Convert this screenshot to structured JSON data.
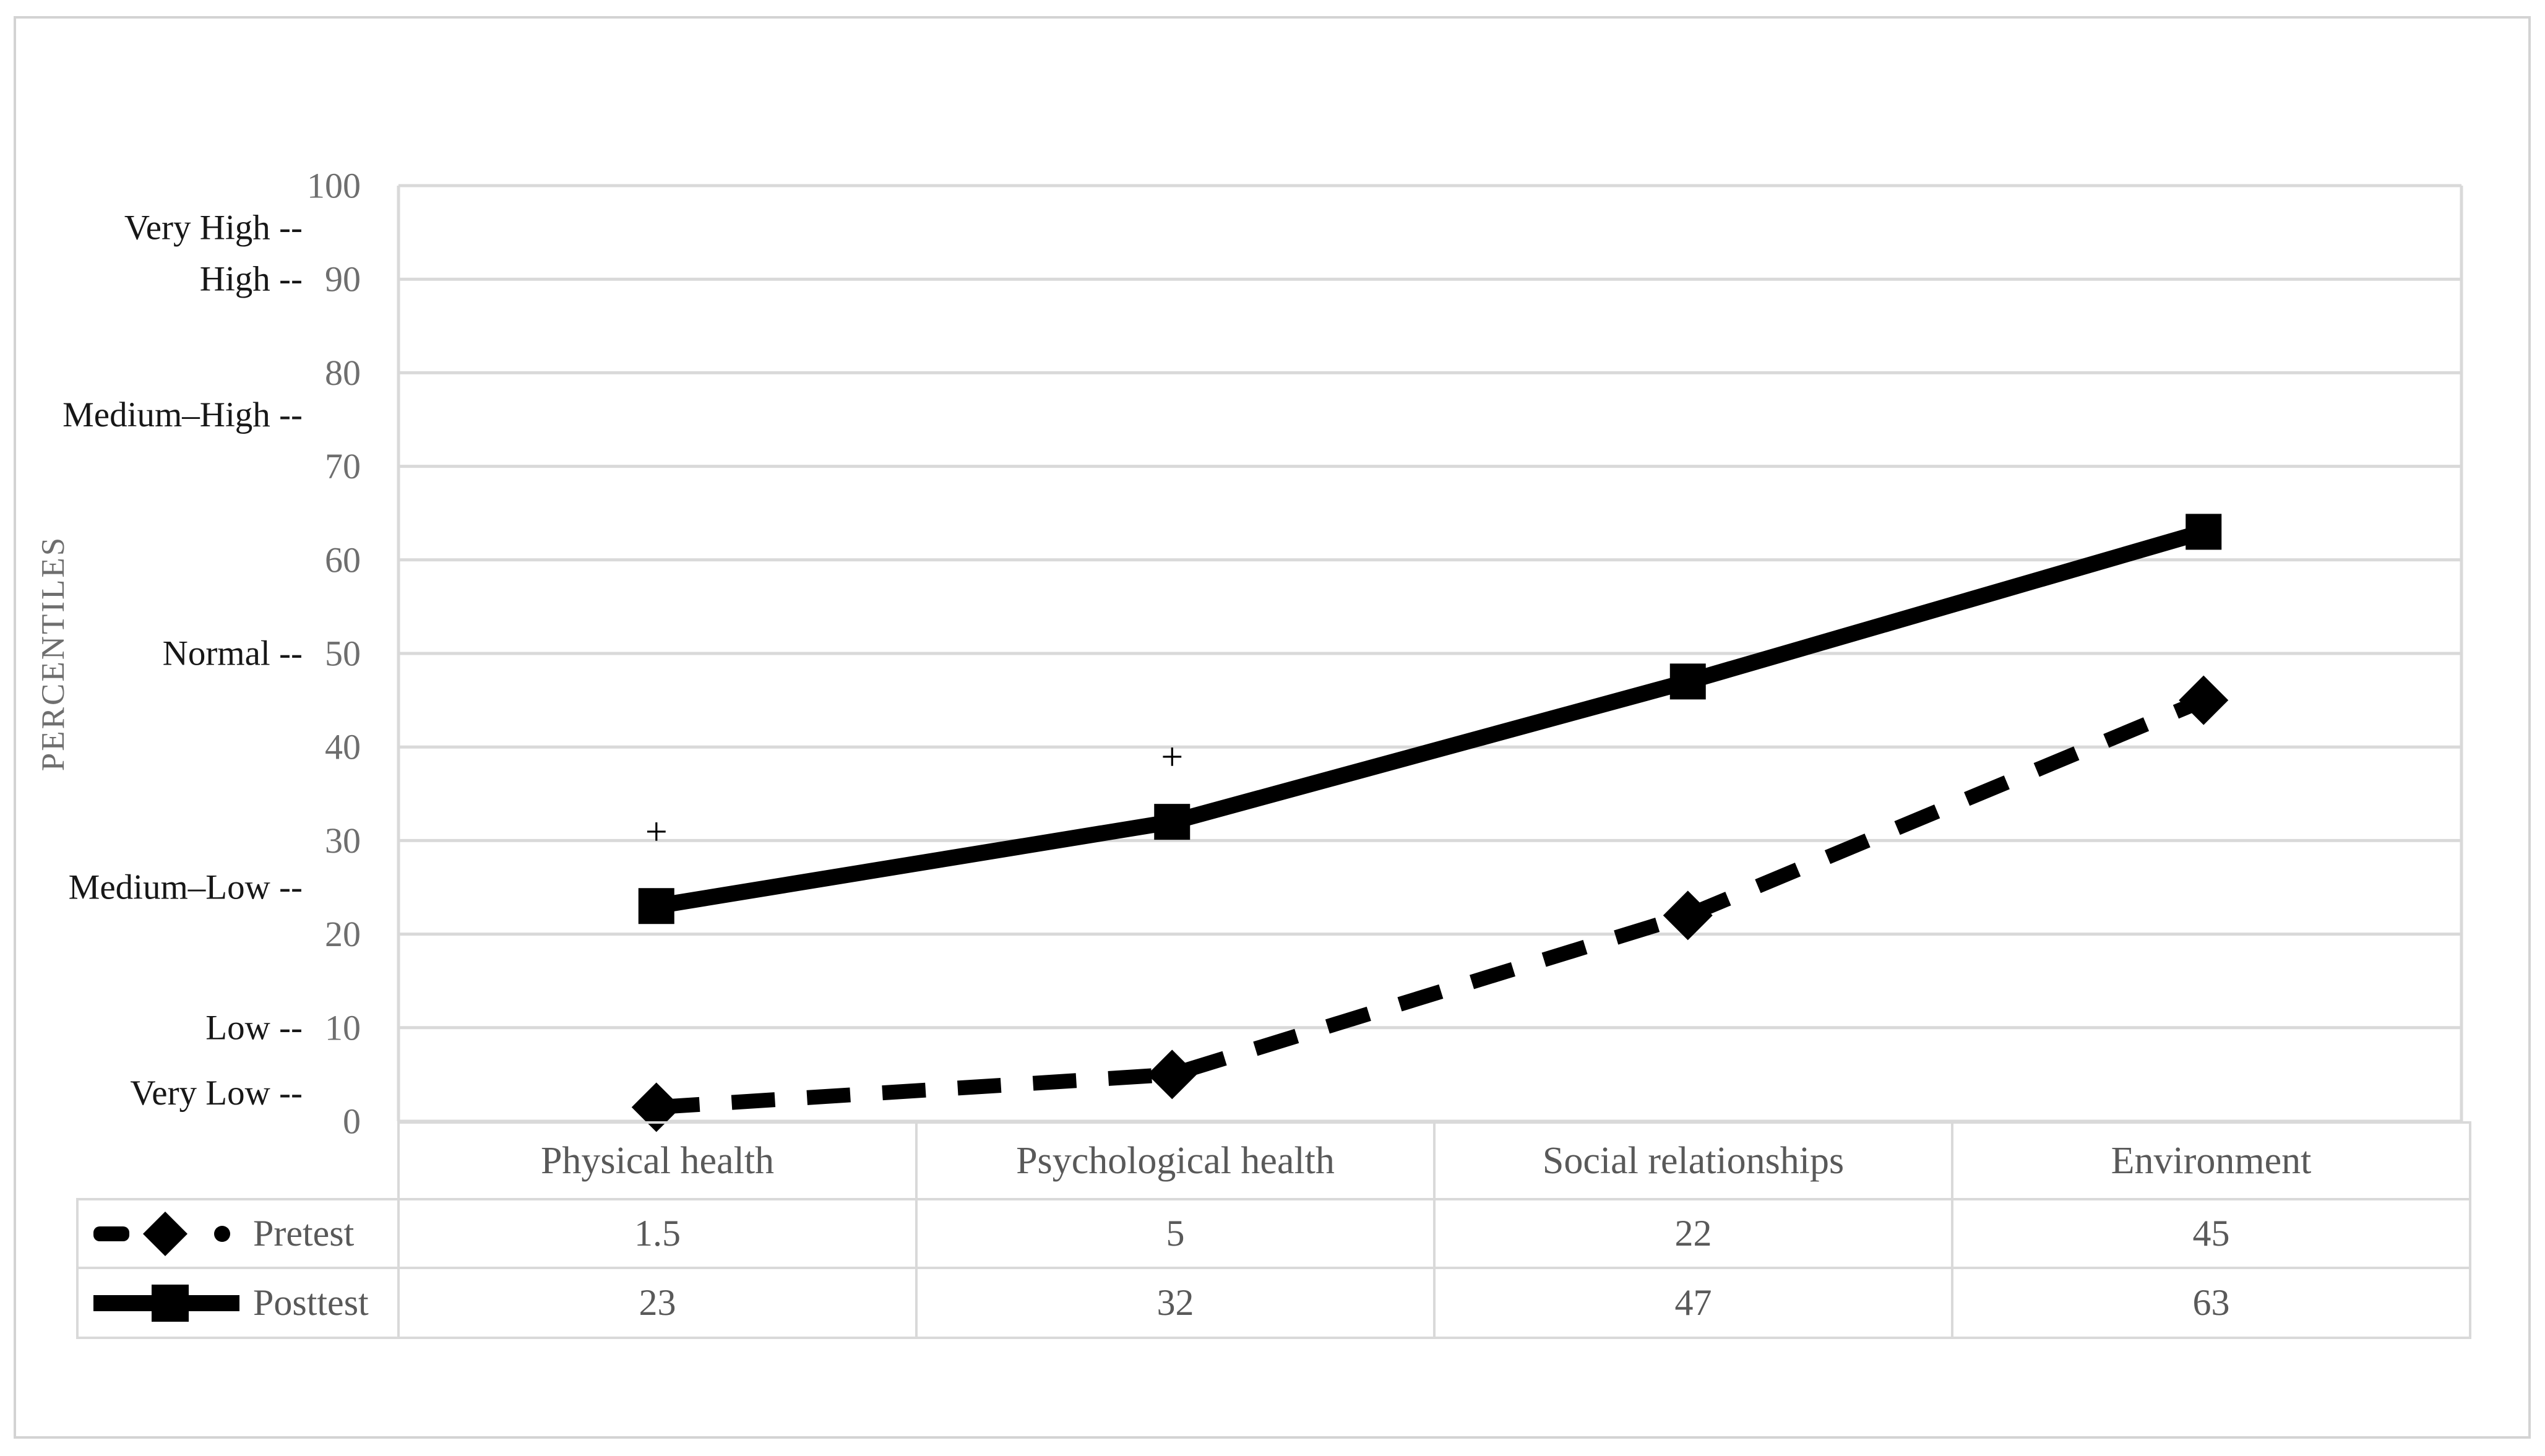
{
  "chart_data": {
    "type": "line",
    "title": "",
    "categories": [
      "Physical health",
      "Psychological health",
      "Social relationships",
      "Environment"
    ],
    "series": [
      {
        "name": "Pretest",
        "values": [
          1.5,
          5,
          22,
          45
        ],
        "line_style": "dashed",
        "marker": "diamond",
        "color": "#000000"
      },
      {
        "name": "Posttest",
        "values": [
          23,
          32,
          47,
          63
        ],
        "line_style": "solid",
        "marker": "square",
        "color": "#000000"
      }
    ],
    "ylabel": "PERCENTILES",
    "xlabel": "",
    "ylim": [
      0,
      100
    ],
    "yticks": [
      0,
      10,
      20,
      30,
      40,
      50,
      60,
      70,
      80,
      90,
      100
    ],
    "grid": true,
    "legend_position": "table-left",
    "band_labels": [
      {
        "text": "Very High --",
        "value": 95.5
      },
      {
        "text": "High --",
        "value": 90
      },
      {
        "text": "Medium–High --",
        "value": 75.5
      },
      {
        "text": "Normal --",
        "value": 50
      },
      {
        "text": "Medium–Low --",
        "value": 25
      },
      {
        "text": "Low --",
        "value": 10
      },
      {
        "text": "Very Low --",
        "value": 3
      }
    ],
    "annotations": [
      {
        "text": "+",
        "category_index": 0,
        "value": 31
      },
      {
        "text": "+",
        "category_index": 1,
        "value": 39
      }
    ],
    "colors": {
      "series": "#000000",
      "grid": "#d9d9d9",
      "plot_border": "#d9d9d9",
      "figure_border": "#d3d3d3",
      "tick_text": "#6e6e6e",
      "band_text": "#171717",
      "table_text": "#595959",
      "background": "#ffffff"
    }
  }
}
